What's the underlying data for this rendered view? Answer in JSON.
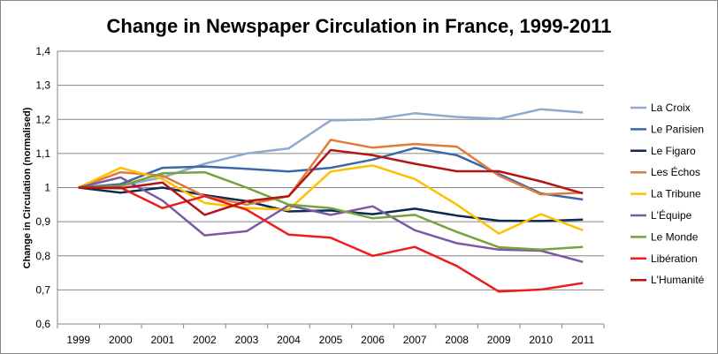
{
  "chart_data": {
    "type": "line",
    "title": "Change in Newspaper Circulation in France, 1999-2011",
    "xlabel": "",
    "ylabel": "Change in Circulation (normalised)",
    "ylim": [
      0.6,
      1.4
    ],
    "y_ticks": [
      "0,6",
      "0,7",
      "0,8",
      "0,9",
      "1",
      "1,1",
      "1,2",
      "1,3",
      "1,4"
    ],
    "grid": true,
    "legend_position": "right",
    "x": [
      "1999",
      "2000",
      "2001",
      "2002",
      "2003",
      "2004",
      "2005",
      "2006",
      "2007",
      "2008",
      "2009",
      "2010",
      "2011"
    ],
    "series": [
      {
        "name": "La Croix",
        "color": "#8ea9d0",
        "values": [
          1.0,
          1.005,
          1.03,
          1.07,
          1.1,
          1.115,
          1.197,
          1.2,
          1.218,
          1.207,
          1.202,
          1.23,
          1.22
        ]
      },
      {
        "name": "Le Parisien",
        "color": "#3b67a6",
        "values": [
          1.0,
          1.01,
          1.058,
          1.062,
          1.055,
          1.047,
          1.058,
          1.082,
          1.116,
          1.095,
          1.04,
          0.983,
          0.965
        ]
      },
      {
        "name": "Le Figaro",
        "color": "#0d2a52",
        "values": [
          1.0,
          0.985,
          1.0,
          0.978,
          0.96,
          0.93,
          0.933,
          0.922,
          0.938,
          0.918,
          0.903,
          0.902,
          0.906
        ]
      },
      {
        "name": "Les Échos",
        "color": "#e07b39",
        "values": [
          1.0,
          1.045,
          1.035,
          0.975,
          0.95,
          0.975,
          1.14,
          1.117,
          1.128,
          1.12,
          1.035,
          0.98,
          0.985
        ]
      },
      {
        "name": "La Tribune",
        "color": "#ffc000",
        "values": [
          1.0,
          1.058,
          1.025,
          0.955,
          0.94,
          0.935,
          1.047,
          1.065,
          1.025,
          0.95,
          0.865,
          0.922,
          0.875
        ]
      },
      {
        "name": "L'Équipe",
        "color": "#7b59a3",
        "values": [
          1.0,
          1.03,
          0.962,
          0.86,
          0.872,
          0.948,
          0.92,
          0.945,
          0.875,
          0.837,
          0.818,
          0.815,
          0.782
        ]
      },
      {
        "name": "Le Monde",
        "color": "#77a23e",
        "values": [
          1.0,
          1.005,
          1.042,
          1.045,
          1.0,
          0.95,
          0.94,
          0.91,
          0.92,
          0.87,
          0.825,
          0.818,
          0.826
        ]
      },
      {
        "name": "Libération",
        "color": "#ee1c1c",
        "values": [
          1.0,
          1.0,
          0.94,
          0.975,
          0.935,
          0.862,
          0.853,
          0.8,
          0.826,
          0.77,
          0.695,
          0.701,
          0.72
        ]
      },
      {
        "name": "L'Humanité",
        "color": "#b31515",
        "values": [
          1.0,
          0.998,
          1.015,
          0.92,
          0.96,
          0.975,
          1.11,
          1.095,
          1.07,
          1.048,
          1.048,
          1.018,
          0.983
        ]
      }
    ]
  }
}
